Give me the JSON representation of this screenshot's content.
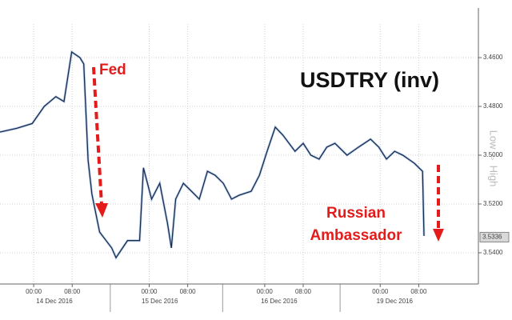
{
  "chart_data": {
    "type": "line",
    "title": "USDTRY (inv)",
    "annotations": [
      "Fed",
      "Russian",
      "Ambassador"
    ],
    "side_label": "Low ⇔ High",
    "color": "#1c2b4f",
    "x": [
      -7,
      -3.6,
      -0.3,
      2.2,
      4.6,
      6.3,
      7.9,
      9.6,
      10.4,
      11.3,
      12.1,
      13.7,
      16.2,
      17.1,
      19.5,
      22.0,
      22.8,
      24.5,
      26.2,
      27.8,
      28.6,
      29.5,
      31.1,
      32.8,
      34.4,
      36.1,
      37.7,
      39.4,
      41.1,
      42.7,
      45.2,
      46.9,
      48.5,
      50.2,
      51.8,
      54.3,
      56.0,
      57.6,
      59.3,
      60.9,
      62.6,
      65.1,
      67.5,
      70.0,
      71.7,
      73.3,
      75.0,
      76.7,
      79.1,
      80.8,
      81.1
    ],
    "values": [
      3.4905,
      3.489,
      3.487,
      3.48,
      3.476,
      3.478,
      3.4577,
      3.46,
      3.4626,
      3.502,
      3.516,
      3.5315,
      3.538,
      3.542,
      3.535,
      3.535,
      3.5052,
      3.518,
      3.5115,
      3.528,
      3.538,
      3.518,
      3.5115,
      3.5148,
      3.518,
      3.5066,
      3.5082,
      3.5115,
      3.518,
      3.5164,
      3.5148,
      3.5082,
      3.4984,
      3.4885,
      3.4918,
      3.4984,
      3.4951,
      3.5,
      3.5016,
      3.4967,
      3.4951,
      3.5,
      3.4967,
      3.4934,
      3.4967,
      3.5016,
      3.4984,
      3.5,
      3.5033,
      3.5066,
      3.5331
    ],
    "last_value": 3.5336,
    "xlim": [
      -7,
      92.4
    ],
    "xticks": [
      {
        "value": 0,
        "label": "00:00"
      },
      {
        "value": 8,
        "label": "08:00"
      },
      {
        "value": 24,
        "label": "00:00"
      },
      {
        "value": 32,
        "label": "08:00"
      },
      {
        "value": 48,
        "label": "00:00"
      },
      {
        "value": 56,
        "label": "08:00"
      },
      {
        "value": 72,
        "label": "00:00"
      },
      {
        "value": 80,
        "label": "08:00"
      }
    ],
    "day_ticks": [
      {
        "value": 4.3,
        "label": "14 Dec 2016"
      },
      {
        "value": 26.2,
        "label": "15 Dec 2016"
      },
      {
        "value": 51,
        "label": "16 Dec 2016"
      },
      {
        "value": 75,
        "label": "19 Dec 2016"
      }
    ],
    "ylim": [
      3.4495,
      3.5528
    ],
    "y_inverted": true,
    "yticks": [
      {
        "value": 3.46,
        "label": "3.4600"
      },
      {
        "value": 3.48,
        "label": "3.4800"
      },
      {
        "value": 3.5,
        "label": "3.5000"
      },
      {
        "value": 3.52,
        "label": "3.5200"
      },
      {
        "value": 3.54,
        "label": "3.5400"
      }
    ],
    "grid": true
  }
}
